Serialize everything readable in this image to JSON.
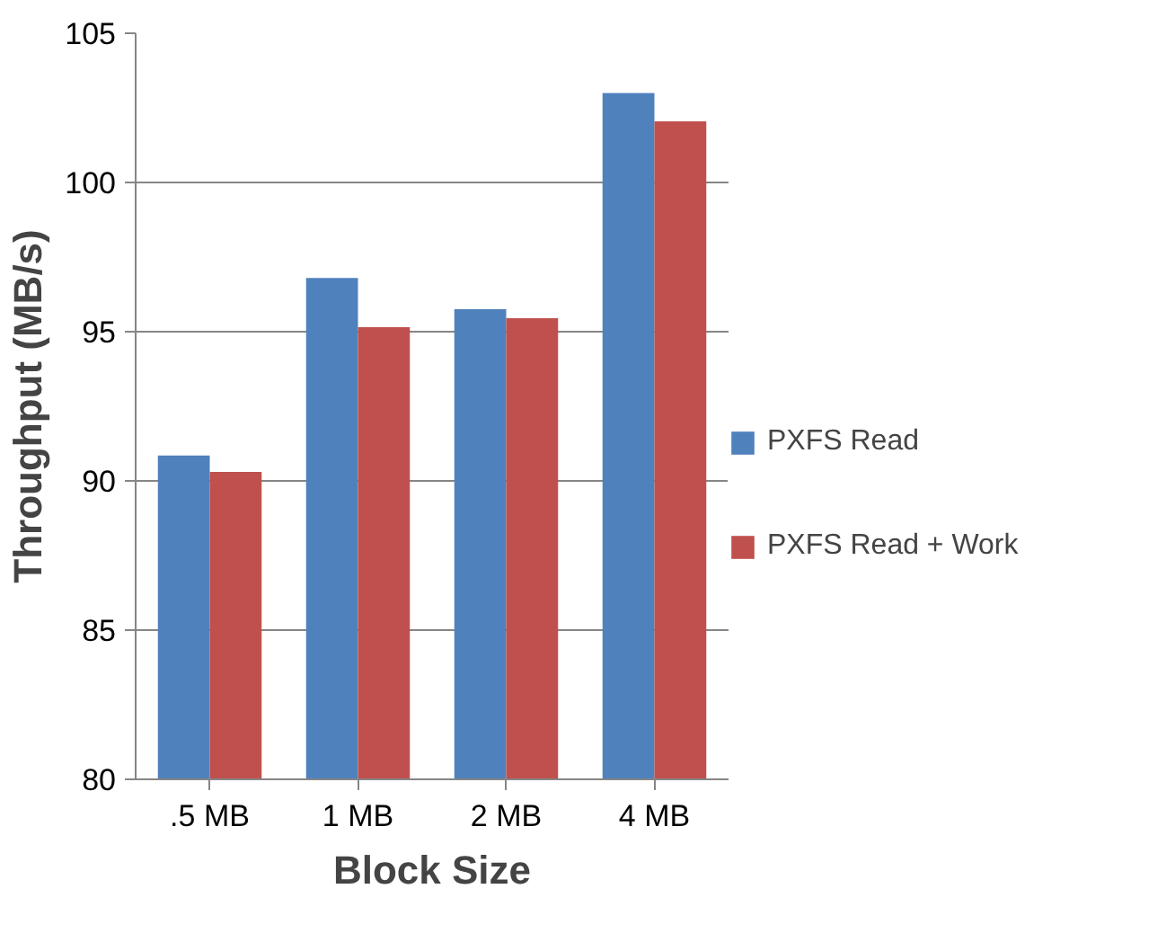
{
  "chart_data": {
    "type": "bar",
    "xlabel": "Block Size",
    "ylabel": "Throughput (MB/s)",
    "categories": [
      ".5 MB",
      "1 MB",
      "2 MB",
      "4 MB"
    ],
    "series": [
      {
        "name": "PXFS Read",
        "color": "#4f81bd",
        "values": [
          90.85,
          96.8,
          95.75,
          103.0
        ]
      },
      {
        "name": "PXFS Read + Work",
        "color": "#c0504d",
        "values": [
          90.3,
          95.15,
          95.45,
          102.05
        ]
      }
    ],
    "ylim": [
      80,
      105
    ],
    "yticks": [
      80,
      85,
      90,
      95,
      100,
      105
    ],
    "grid": "y",
    "legend": "right"
  }
}
